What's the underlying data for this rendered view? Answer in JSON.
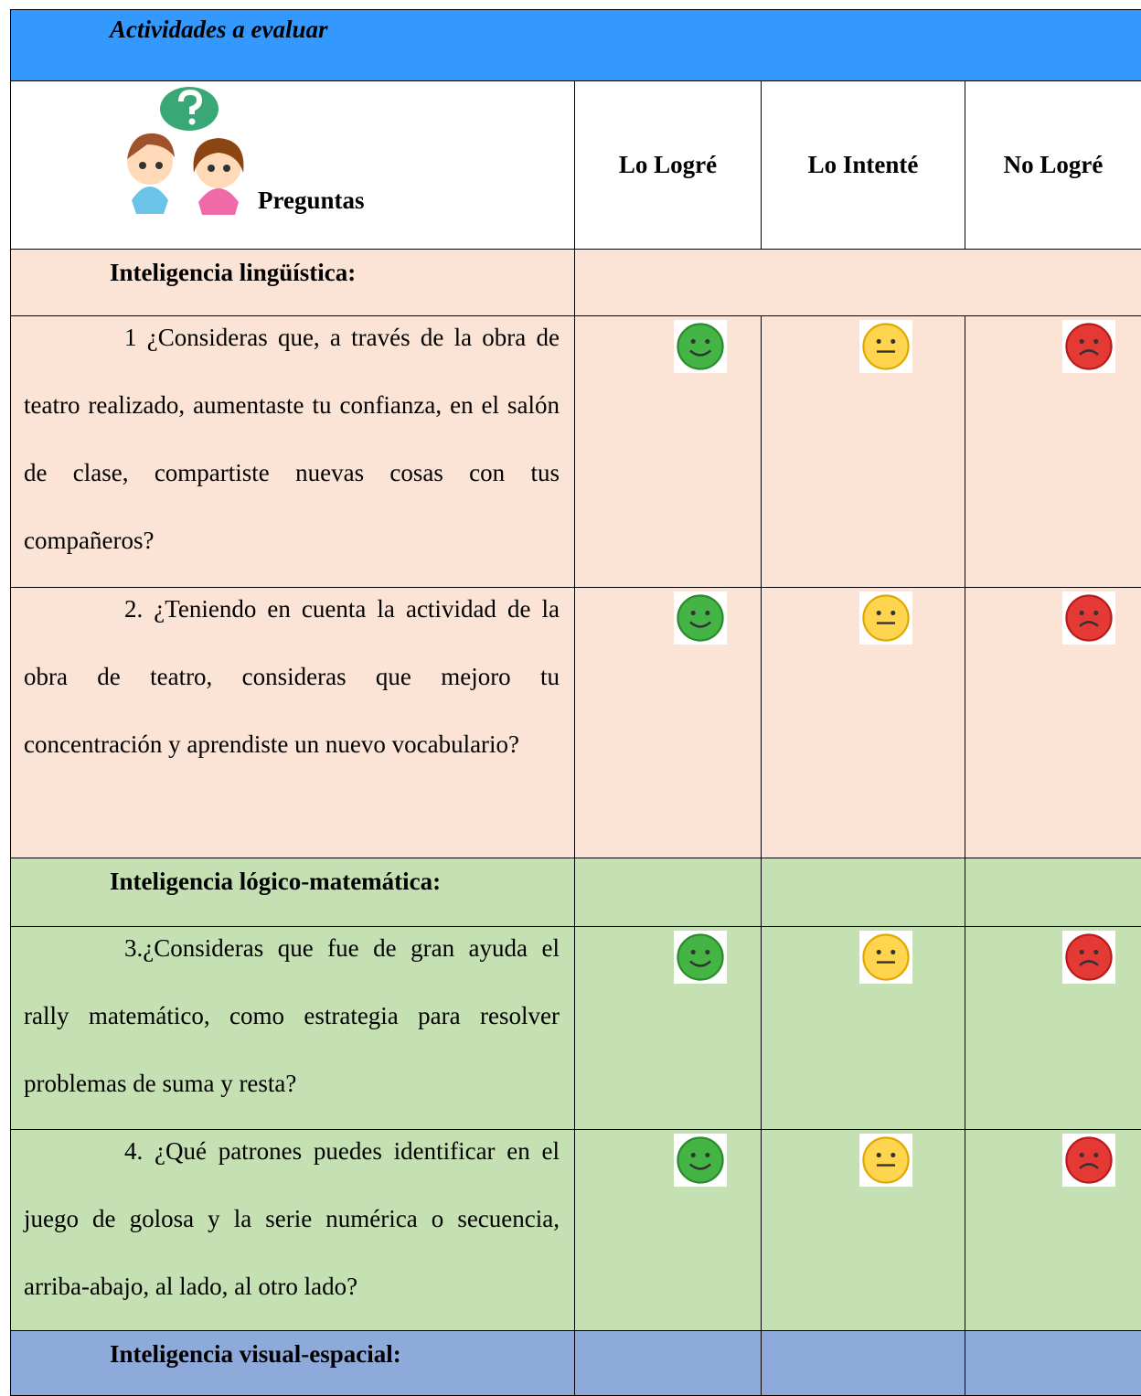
{
  "header": {
    "title": "Actividades a evaluar"
  },
  "table": {
    "columns": [
      "Preguntas",
      "Lo Logré",
      "Lo Intenté",
      "No Logré"
    ],
    "sections": [
      {
        "title": "Inteligencia lingüística:",
        "questions": [
          "1 ¿Consideras que, a través de la obra de teatro realizado, aumentaste tu confianza, en el salón de clase, compartiste nuevas cosas con tus compañeros?",
          "2. ¿Teniendo en cuenta la actividad de la obra de teatro, consideras que mejoro tu concentración y aprendiste un nuevo vocabulario?"
        ]
      },
      {
        "title": "Inteligencia lógico-matemática:",
        "questions": [
          "3.¿Consideras que fue de gran ayuda el rally matemático, como estrategia para resolver problemas de suma y resta?",
          "4. ¿Qué patrones puedes identificar en el juego de golosa y la serie numérica o secuencia, arriba-abajo, al lado, al otro lado?"
        ]
      },
      {
        "title": "Inteligencia visual-espacial:",
        "questions": []
      }
    ]
  }
}
